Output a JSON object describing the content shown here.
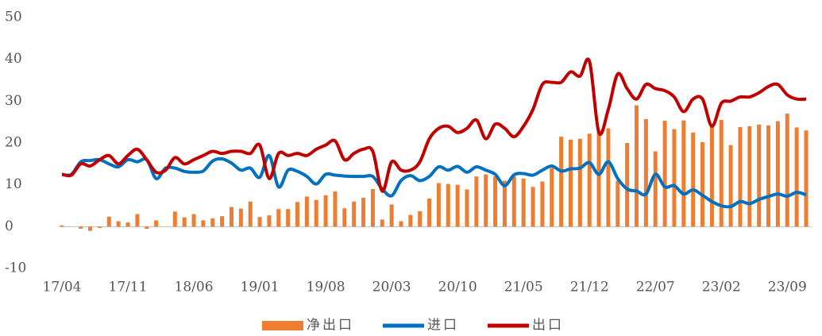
{
  "chart_data": {
    "type": "combo",
    "categories": [
      "17/04",
      null,
      null,
      null,
      null,
      null,
      null,
      "17/11",
      null,
      null,
      null,
      null,
      null,
      null,
      "18/06",
      null,
      null,
      null,
      null,
      null,
      null,
      "19/01",
      null,
      null,
      null,
      null,
      null,
      null,
      "19/08",
      null,
      null,
      null,
      null,
      null,
      null,
      "20/03",
      null,
      null,
      null,
      null,
      null,
      null,
      "20/10",
      null,
      null,
      null,
      null,
      null,
      null,
      "21/05",
      null,
      null,
      null,
      null,
      null,
      null,
      "21/12",
      null,
      null,
      null,
      null,
      null,
      null,
      "22/07",
      null,
      null,
      null,
      null,
      null,
      null,
      "23/02",
      null,
      null,
      null,
      null,
      null,
      null,
      "23/09",
      null,
      null
    ],
    "series": [
      {
        "name": "净出口",
        "kind": "bar",
        "color": "#ed7d31",
        "values": [
          0.3,
          0,
          -0.5,
          -1,
          -0.3,
          2.4,
          1.3,
          1,
          3,
          -0.5,
          1.5,
          0,
          3.6,
          2.2,
          3,
          1.5,
          2,
          2.5,
          4.7,
          4.3,
          6,
          2.3,
          2.7,
          4.2,
          4.2,
          5.9,
          7.2,
          6.4,
          7.5,
          8.4,
          4.4,
          6,
          6.9,
          9,
          1.7,
          5.3,
          1.3,
          2.8,
          3.7,
          6.7,
          10.4,
          10.2,
          10,
          8.9,
          12,
          12.5,
          12,
          11,
          12,
          11.5,
          9.5,
          10.8,
          14,
          21.5,
          20.8,
          21,
          22.2,
          23,
          23.5,
          11,
          20,
          29,
          25.7,
          18,
          25.3,
          23.3,
          25.4,
          22.5,
          20.2,
          24.6,
          25.5,
          19.5,
          23.8,
          24,
          24.4,
          24.2,
          25.2,
          27,
          23.7,
          23
        ]
      },
      {
        "name": "进口",
        "kind": "line",
        "color": "#0070c0",
        "values": [
          12.5,
          12.5,
          15.5,
          15.8,
          16,
          15,
          14.3,
          16,
          15.5,
          16,
          11.5,
          14,
          14,
          13.2,
          13,
          13.3,
          15.7,
          16.2,
          15.2,
          13.5,
          14,
          11.8,
          17,
          9.5,
          13.5,
          13.2,
          12,
          10.2,
          12.5,
          12.3,
          12.1,
          12,
          12,
          12,
          9,
          7.4,
          11,
          12.2,
          11,
          12,
          14.3,
          13.5,
          14.4,
          13,
          14.3,
          13.5,
          12.5,
          9.8,
          12.4,
          12.7,
          12.3,
          13.5,
          14.5,
          13.3,
          13.8,
          14,
          15.3,
          12.5,
          15.5,
          11.5,
          9,
          8.5,
          7.8,
          12.5,
          9.5,
          9.8,
          7.8,
          8.8,
          7.5,
          6,
          5,
          4.8,
          6,
          5.5,
          6.5,
          7.2,
          7.8,
          7.3,
          8.2,
          7.6
        ]
      },
      {
        "name": "出口",
        "kind": "line",
        "color": "#c00000",
        "values": [
          12.5,
          12.3,
          15,
          14.5,
          16,
          17,
          15,
          17,
          18.5,
          16,
          13,
          13.5,
          16.5,
          15,
          16,
          17,
          18,
          17.5,
          18,
          18,
          17.5,
          19.5,
          11.5,
          17.5,
          17,
          17.5,
          17,
          18.5,
          19.5,
          20.5,
          16,
          17.5,
          18.5,
          18,
          8.5,
          15.5,
          13.5,
          13.5,
          15.5,
          21,
          23.5,
          24,
          22.5,
          23.5,
          25.5,
          21,
          24.5,
          23.5,
          21.5,
          24,
          28,
          34,
          34.5,
          34.5,
          37,
          36,
          39.5,
          22.5,
          28,
          36.5,
          33,
          30.5,
          34,
          33,
          32.5,
          31,
          27.5,
          30.5,
          30.5,
          24,
          29.5,
          30,
          31,
          31,
          32,
          33.5,
          34,
          31.5,
          30.5,
          30.5
        ]
      }
    ],
    "ylim": [
      -10,
      50
    ],
    "yticks": [
      -10,
      0,
      10,
      20,
      30,
      40,
      50
    ],
    "grid": false,
    "legend": "bottom"
  }
}
